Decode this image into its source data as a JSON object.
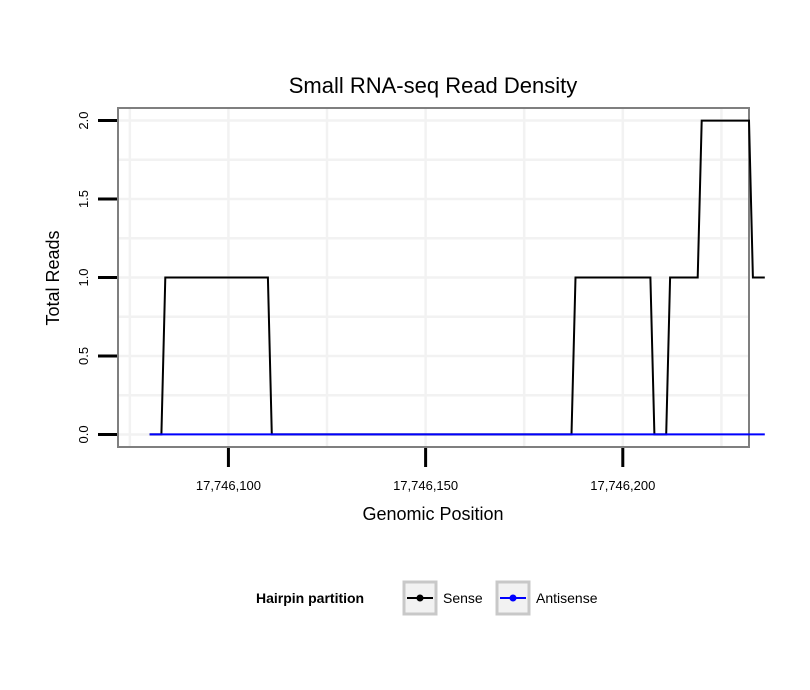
{
  "chart_data": {
    "type": "line",
    "title": "Small RNA-seq Read Density",
    "xlabel": "Genomic Position",
    "ylabel": "Total Reads",
    "xlim": [
      17746072,
      17746232
    ],
    "ylim": [
      -0.08,
      2.08
    ],
    "x_ticks": [
      17746100,
      17746150,
      17746200
    ],
    "x_tick_labels": [
      "17,746,100",
      "17,746,150",
      "17,746,200"
    ],
    "y_ticks": [
      0,
      0.5,
      1,
      1.5,
      2
    ],
    "y_tick_labels": [
      "0.0",
      "0.5",
      "1.0",
      "1.5",
      "2.0"
    ],
    "grid": true,
    "series": [
      {
        "name": "Sense",
        "color": "#000000",
        "x": [
          17746080,
          17746083,
          17746084,
          17746110,
          17746111,
          17746187,
          17746188,
          17746207,
          17746208,
          17746211,
          17746212,
          17746219,
          17746220,
          17746232,
          17746233,
          17746236
        ],
        "y": [
          0,
          0,
          1,
          1,
          0,
          0,
          1,
          1,
          0,
          0,
          1,
          1,
          2,
          2,
          1,
          1
        ]
      },
      {
        "name": "Antisense",
        "color": "#0000ff",
        "x": [
          17746080,
          17746236
        ],
        "y": [
          0,
          0
        ]
      }
    ],
    "legend": {
      "title": "Hairpin partition",
      "position": "bottom",
      "entries": [
        "Sense",
        "Antisense"
      ]
    }
  }
}
